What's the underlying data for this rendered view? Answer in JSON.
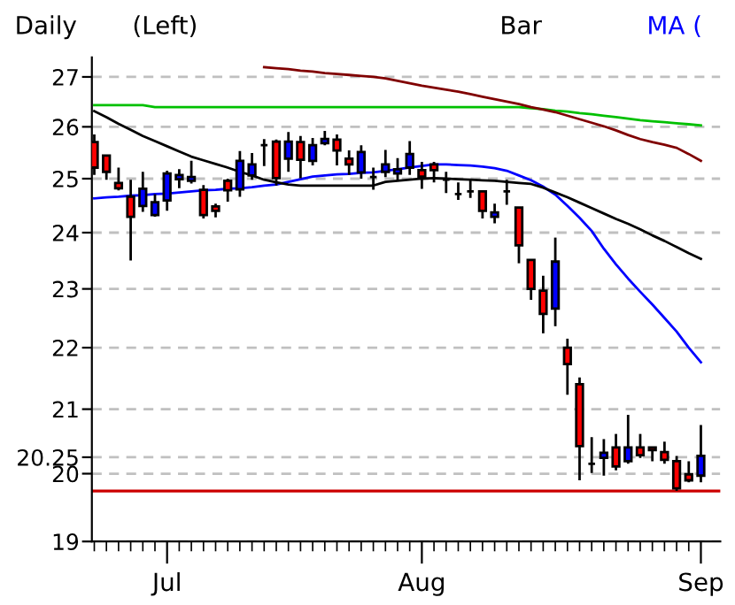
{
  "chart_data": {
    "type": "candlestick",
    "annotations": [
      "Daily",
      "(Left)",
      "Bar",
      "MA ("
    ],
    "categories": [
      null,
      null,
      null,
      null,
      null,
      null,
      "Jul",
      null,
      null,
      null,
      null,
      null,
      null,
      null,
      null,
      null,
      null,
      null,
      null,
      null,
      null,
      null,
      null,
      null,
      null,
      null,
      null,
      "Aug",
      null,
      null,
      null,
      null,
      null,
      null,
      null,
      null,
      null,
      null,
      null,
      null,
      null,
      null,
      null,
      null,
      null,
      null,
      null,
      null,
      null,
      null,
      "Sep"
    ],
    "ohlc": [
      [
        25.7,
        25.85,
        25.07,
        25.21
      ],
      [
        25.44,
        25.45,
        24.98,
        25.13
      ],
      [
        24.92,
        25.21,
        24.78,
        24.82
      ],
      [
        24.66,
        24.98,
        23.5,
        24.29
      ],
      [
        24.49,
        25.13,
        24.38,
        24.81
      ],
      [
        24.32,
        24.71,
        24.29,
        24.56
      ],
      [
        24.59,
        25.15,
        24.4,
        25.1
      ],
      [
        24.99,
        25.18,
        24.82,
        25.07
      ],
      [
        24.96,
        25.34,
        24.91,
        25.03
      ],
      [
        24.79,
        24.88,
        24.26,
        24.32
      ],
      [
        24.48,
        24.53,
        24.28,
        24.4
      ],
      [
        24.96,
        25.0,
        24.57,
        24.78
      ],
      [
        24.8,
        25.53,
        24.66,
        25.34
      ],
      [
        25.06,
        25.49,
        24.98,
        25.27
      ],
      [
        25.64,
        25.76,
        25.24,
        25.64
      ],
      [
        25.71,
        25.75,
        24.87,
        25.01
      ],
      [
        25.38,
        25.9,
        25.13,
        25.71
      ],
      [
        25.7,
        25.82,
        25.01,
        25.36
      ],
      [
        25.34,
        25.78,
        25.25,
        25.64
      ],
      [
        25.68,
        25.92,
        25.64,
        25.76
      ],
      [
        25.75,
        25.85,
        25.25,
        25.54
      ],
      [
        25.38,
        25.54,
        25.07,
        25.27
      ],
      [
        25.12,
        25.64,
        25.0,
        25.51
      ],
      [
        25.03,
        25.21,
        24.79,
        25.03
      ],
      [
        25.13,
        25.55,
        25.03,
        25.27
      ],
      [
        25.1,
        25.39,
        24.98,
        25.18
      ],
      [
        25.21,
        25.72,
        25.07,
        25.47
      ],
      [
        25.16,
        25.32,
        24.81,
        25.04
      ],
      [
        25.27,
        25.32,
        24.93,
        25.16
      ],
      [
        24.98,
        25.13,
        24.73,
        24.98
      ],
      [
        24.71,
        24.93,
        24.6,
        24.71
      ],
      [
        24.76,
        24.98,
        24.64,
        24.76
      ],
      [
        24.76,
        24.76,
        24.26,
        24.4
      ],
      [
        24.29,
        24.53,
        24.17,
        24.37
      ],
      [
        24.76,
        24.98,
        24.51,
        24.76
      ],
      [
        24.46,
        24.46,
        23.45,
        23.77
      ],
      [
        23.51,
        23.51,
        22.81,
        23.0
      ],
      [
        22.97,
        23.23,
        22.24,
        22.57
      ],
      [
        22.66,
        23.91,
        22.36,
        23.48
      ],
      [
        22.0,
        22.15,
        21.23,
        21.73
      ],
      [
        21.4,
        21.51,
        19.9,
        20.42
      ],
      [
        20.15,
        20.56,
        20.01,
        20.15
      ],
      [
        20.24,
        20.53,
        19.97,
        20.32
      ],
      [
        20.4,
        20.61,
        20.05,
        20.11
      ],
      [
        20.19,
        20.91,
        20.15,
        20.4
      ],
      [
        20.4,
        20.61,
        20.24,
        20.28
      ],
      [
        20.4,
        20.41,
        20.19,
        20.36
      ],
      [
        20.33,
        20.49,
        20.15,
        20.21
      ],
      [
        20.19,
        20.27,
        19.74,
        19.78
      ],
      [
        19.99,
        20.19,
        19.87,
        19.9
      ],
      [
        19.97,
        20.75,
        19.87,
        20.27
      ]
    ],
    "colors": [
      "#ff0000",
      "#ff0000",
      "#ff0000",
      "#ff0000",
      "#0000ff",
      "#0000ff",
      "#0000ff",
      "#0000ff",
      "#0000ff",
      "#ff0000",
      "#ff0000",
      "#ff0000",
      "#0000ff",
      "#0000ff",
      "#000000",
      "#ff0000",
      "#0000ff",
      "#ff0000",
      "#0000ff",
      "#0000ff",
      "#ff0000",
      "#ff0000",
      "#0000ff",
      "#000000",
      "#0000ff",
      "#0000ff",
      "#0000ff",
      "#ff0000",
      "#ff0000",
      "#000000",
      "#000000",
      "#000000",
      "#ff0000",
      "#0000ff",
      "#000000",
      "#ff0000",
      "#ff0000",
      "#ff0000",
      "#0000ff",
      "#ff0000",
      "#ff0000",
      "#000000",
      "#0000ff",
      "#ff0000",
      "#0000ff",
      "#ff0000",
      "#ff0000",
      "#ff0000",
      "#ff0000",
      "#ff0000",
      "#0000ff"
    ],
    "series": [
      {
        "type": "line",
        "color": "#0000ff",
        "values": [
          24.63,
          24.65,
          24.66,
          24.68,
          24.69,
          24.71,
          24.72,
          24.74,
          24.76,
          24.78,
          24.79,
          24.81,
          24.82,
          24.84,
          24.87,
          24.89,
          24.94,
          24.99,
          25.04,
          25.06,
          25.08,
          25.09,
          25.11,
          25.12,
          25.15,
          25.18,
          25.21,
          25.24,
          25.27,
          25.27,
          25.26,
          25.25,
          25.23,
          25.2,
          25.15,
          25.06,
          24.97,
          24.85,
          24.7,
          24.49,
          24.27,
          24.03,
          23.71,
          23.43,
          23.18,
          22.95,
          22.73,
          22.5,
          22.27,
          22.0,
          21.76
        ]
      },
      {
        "type": "line",
        "color": "#000000",
        "values": [
          26.31,
          26.19,
          26.06,
          25.94,
          25.82,
          25.72,
          25.62,
          25.52,
          25.42,
          25.35,
          25.28,
          25.21,
          25.13,
          25.06,
          24.98,
          24.93,
          24.89,
          24.87,
          24.87,
          24.87,
          24.87,
          24.87,
          24.87,
          24.87,
          24.94,
          24.96,
          24.98,
          25.0,
          25.01,
          25.0,
          24.99,
          24.98,
          24.97,
          24.96,
          24.94,
          24.92,
          24.9,
          24.83,
          24.74,
          24.65,
          24.55,
          24.45,
          24.35,
          24.25,
          24.16,
          24.06,
          23.95,
          23.85,
          23.74,
          23.63,
          23.53
        ]
      },
      {
        "type": "line",
        "color": "#00c000",
        "values": [
          26.43,
          26.43,
          26.43,
          26.43,
          26.43,
          26.39,
          26.39,
          26.39,
          26.39,
          26.39,
          26.39,
          26.39,
          26.39,
          26.39,
          26.39,
          26.39,
          26.39,
          26.39,
          26.39,
          26.39,
          26.39,
          26.39,
          26.39,
          26.39,
          26.39,
          26.39,
          26.39,
          26.39,
          26.39,
          26.39,
          26.39,
          26.39,
          26.39,
          26.39,
          26.39,
          26.39,
          26.37,
          26.35,
          26.32,
          26.3,
          26.27,
          26.25,
          26.22,
          26.19,
          26.16,
          26.13,
          26.11,
          26.09,
          26.07,
          26.05,
          26.03
        ]
      },
      {
        "type": "line",
        "color": "#800000",
        "values": [
          null,
          null,
          null,
          null,
          null,
          null,
          null,
          null,
          null,
          null,
          null,
          null,
          null,
          null,
          27.2,
          27.18,
          27.16,
          27.13,
          27.11,
          27.08,
          27.06,
          27.04,
          27.02,
          27.0,
          26.97,
          26.92,
          26.87,
          26.82,
          26.78,
          26.74,
          26.7,
          26.65,
          26.6,
          26.55,
          26.5,
          26.45,
          26.39,
          26.34,
          26.29,
          26.22,
          26.15,
          26.08,
          26.01,
          25.93,
          25.84,
          25.76,
          25.7,
          25.65,
          25.59,
          25.47,
          25.34
        ]
      }
    ],
    "ref_lines": [
      {
        "axis": "y",
        "value": 19.74,
        "color": "#cc0000"
      }
    ],
    "log": true,
    "ylim": [
      19,
      27.4
    ],
    "yticks": [
      19,
      20,
      20.25,
      21,
      22,
      23,
      24,
      25,
      26,
      27
    ],
    "grid": "y",
    "line_style": "solid"
  }
}
